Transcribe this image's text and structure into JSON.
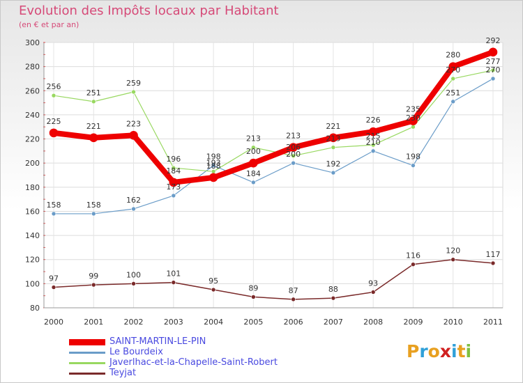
{
  "chart_data": {
    "type": "line",
    "title": "Evolution des Impôts locaux par Habitant",
    "subtitle": "(en € et par an)",
    "xlabel": "",
    "ylabel": "",
    "categories": [
      "2000",
      "2001",
      "2002",
      "2003",
      "2004",
      "2005",
      "2006",
      "2007",
      "2008",
      "2009",
      "2010",
      "2011"
    ],
    "ylim": [
      80,
      300
    ],
    "yticks": [
      80,
      100,
      120,
      140,
      160,
      180,
      200,
      220,
      240,
      260,
      280,
      300
    ],
    "grid": true,
    "legend_position": "bottom-left",
    "series": [
      {
        "name": "Teyjat",
        "color": "#7a2a2a",
        "values": [
          97,
          99,
          100,
          101,
          95,
          89,
          87,
          88,
          93,
          116,
          120,
          117
        ]
      },
      {
        "name": "Le Bourdeix",
        "color": "#6a9cc8",
        "values": [
          158,
          158,
          162,
          173,
          198,
          184,
          200,
          192,
          210,
          198,
          251,
          270
        ]
      },
      {
        "name": "Javerlhac-et-la-Chapelle-Saint-Robert",
        "color": "#98d860",
        "values": [
          256,
          251,
          259,
          196,
          193,
          213,
          206,
          213,
          215,
          230,
          270,
          277
        ]
      },
      {
        "name": "SAINT-MARTIN-LE-PIN",
        "color": "#ee0000",
        "values": [
          225,
          221,
          223,
          184,
          188,
          200,
          213,
          221,
          226,
          235,
          280,
          292
        ]
      }
    ]
  },
  "legend": [
    {
      "label": "SAINT-MARTIN-LE-PIN",
      "color": "#ee0000",
      "thick": true
    },
    {
      "label": "Le Bourdeix",
      "color": "#6a9cc8"
    },
    {
      "label": "Javerlhac-et-la-Chapelle-Saint-Robert",
      "color": "#98d860"
    },
    {
      "label": "Teyjat",
      "color": "#7a2a2a"
    }
  ],
  "logo": {
    "letters": [
      "P",
      "r",
      "o",
      "x",
      "i",
      "t",
      "i"
    ],
    "colors": [
      "#e8a020",
      "#30a0d8",
      "#e8a020",
      "#d02020",
      "#30a0d8",
      "#e8a020",
      "#80c040"
    ]
  }
}
